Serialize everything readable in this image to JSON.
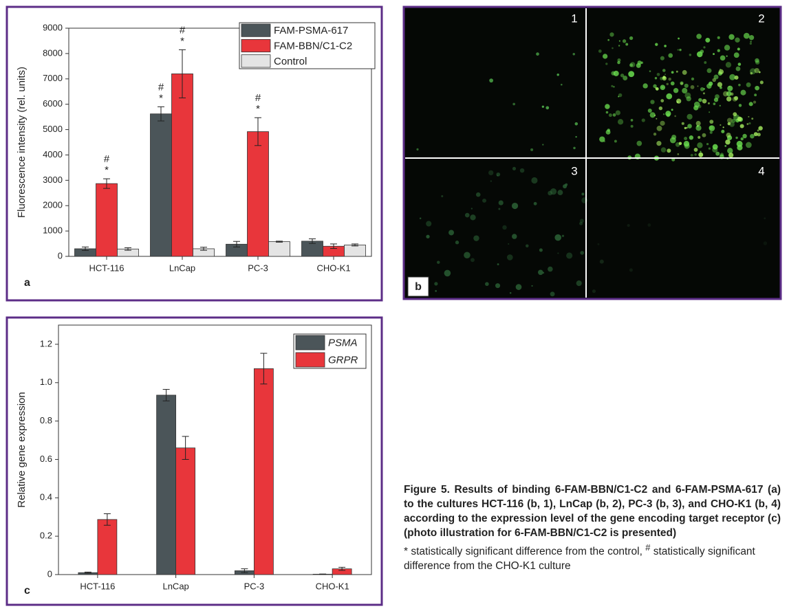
{
  "chart_data": [
    {
      "type": "bar",
      "panel_label": "a",
      "y_label": "Fluorescence intensity (rel. units)",
      "categories": [
        "HCT-116",
        "LnCap",
        "PC-3",
        "CHO-K1"
      ],
      "series": [
        {
          "name": "FAM-PSMA-617",
          "color": "#4b5559",
          "values": [
            300,
            5620,
            480,
            600
          ],
          "errors": [
            70,
            280,
            110,
            90
          ],
          "annotations": [
            null,
            [
              "#",
              "*"
            ],
            null,
            null
          ]
        },
        {
          "name": "FAM-BBN/C1-C2",
          "color": "#e8363b",
          "values": [
            2870,
            7200,
            4920,
            400
          ],
          "errors": [
            190,
            950,
            550,
            90
          ],
          "annotations": [
            [
              "#",
              "*"
            ],
            [
              "#",
              "*"
            ],
            [
              "#",
              "*"
            ],
            null
          ]
        },
        {
          "name": "Control",
          "color": "#e4e4e4",
          "values": [
            290,
            300,
            580,
            450
          ],
          "errors": [
            50,
            60,
            20,
            40
          ],
          "annotations": [
            null,
            null,
            null,
            null
          ]
        }
      ],
      "ylim": [
        0,
        9000
      ],
      "yticks": [
        0,
        1000,
        2000,
        3000,
        4000,
        5000,
        6000,
        7000,
        8000,
        9000
      ],
      "legend": "upper right",
      "legend_italic": false
    },
    {
      "type": "bar",
      "panel_label": "c",
      "y_label": "Relative gene expression",
      "categories": [
        "HCT-116",
        "LnCap",
        "PC-3",
        "CHO-K1"
      ],
      "series": [
        {
          "name": "PSMA",
          "color": "#4b5559",
          "values": [
            0.01,
            0.935,
            0.02,
            0.002
          ],
          "errors": [
            0.003,
            0.03,
            0.01,
            0.001
          ]
        },
        {
          "name": "GRPR",
          "color": "#e8363b",
          "values": [
            0.287,
            0.66,
            1.073,
            0.03
          ],
          "errors": [
            0.03,
            0.06,
            0.08,
            0.008
          ]
        }
      ],
      "ylim": [
        0,
        1.3
      ],
      "yticks": [
        0,
        0.2,
        0.4,
        0.6,
        0.8,
        {
          "value": 1,
          "label": "1.0"
        },
        1.2
      ],
      "legend": "upper right",
      "legend_italic": true
    }
  ],
  "panel_b": {
    "label": "b",
    "quadrants": [
      "1",
      "2",
      "3",
      "4"
    ]
  },
  "caption": {
    "title": "Figure 5. Results of binding 6-FAM-BBN/C1-C2 and 6-FAM-PSMA-617 (a) to the cultures HCT-116 (b, 1), LnCap (b, 2), PC-3 (b, 3), and CHO-K1 (b, 4) according to the expression level of the gene encoding target receptor (c) (photo illustration for 6-FAM-BBN/C1-C2 is presented)",
    "note_start": "* statistically significant difference from the control, ",
    "note_mark": "#",
    "note_end": " statistically significant difference from the CHO-K1 culture"
  }
}
